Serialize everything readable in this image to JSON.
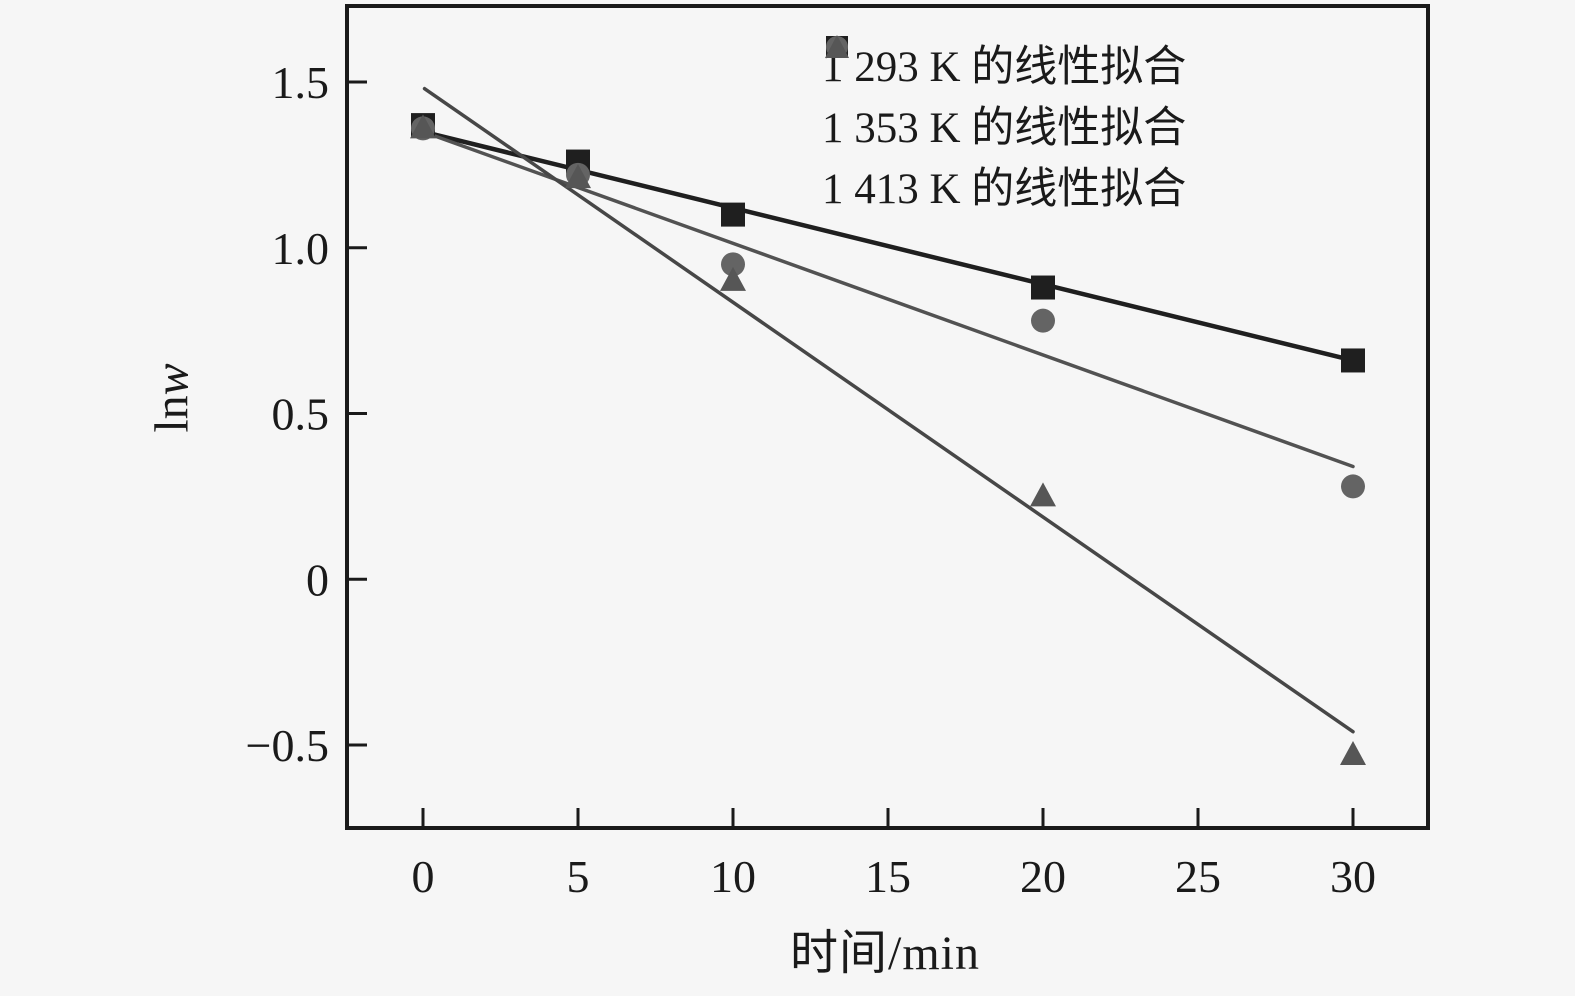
{
  "figure": {
    "background": "#f6f6f6",
    "frame_color": "#1a1a1a",
    "tick_label_color": "#1a1a1a"
  },
  "chart_data": {
    "type": "scatter",
    "title": "",
    "xlabel": "时间/min",
    "ylabel": "lnw",
    "ylabel_prefix": "ln",
    "ylabel_var": "w",
    "xlim": [
      -2.45,
      32.4
    ],
    "ylim": [
      -0.75,
      1.73
    ],
    "grid": false,
    "x_ticks": [
      0,
      5,
      10,
      15,
      20,
      25,
      30
    ],
    "y_ticks": [
      {
        "value": 1.5,
        "label": "1.5"
      },
      {
        "value": 1.0,
        "label": "1.0"
      },
      {
        "value": 0.5,
        "label": "0.5"
      },
      {
        "value": 0,
        "label": "0"
      },
      {
        "value": -0.5,
        "label": "−0.5"
      }
    ],
    "legend_position": "top-right-inside",
    "series": [
      {
        "name": "1 293 K 的线性拟合",
        "marker": "square",
        "marker_color": "#1f1f1f",
        "line_color": "#1f1f1f",
        "line_width": 4.5,
        "points": [
          [
            0,
            1.37
          ],
          [
            5,
            1.26
          ],
          [
            10,
            1.1
          ],
          [
            20,
            0.88
          ],
          [
            30,
            0.66
          ]
        ],
        "fit_line": {
          "x": [
            0,
            30
          ],
          "y": [
            1.35,
            0.66
          ]
        }
      },
      {
        "name": "1 353 K 的线性拟合",
        "marker": "circle",
        "marker_color": "#646464",
        "line_color": "#525252",
        "line_width": 3.5,
        "points": [
          [
            0,
            1.36
          ],
          [
            5,
            1.22
          ],
          [
            10,
            0.95
          ],
          [
            20,
            0.78
          ],
          [
            30,
            0.28
          ]
        ],
        "fit_line": {
          "x": [
            0,
            30
          ],
          "y": [
            1.35,
            0.34
          ]
        }
      },
      {
        "name": "1 413 K 的线性拟合",
        "marker": "triangle",
        "marker_color": "#565656",
        "line_color": "#474747",
        "line_width": 3.5,
        "points": [
          [
            0,
            1.36
          ],
          [
            5,
            1.21
          ],
          [
            10,
            0.9
          ],
          [
            20,
            0.25
          ],
          [
            30,
            -0.53
          ]
        ],
        "fit_line": {
          "x": [
            0.05,
            30
          ],
          "y": [
            1.48,
            -0.46
          ]
        }
      }
    ]
  }
}
